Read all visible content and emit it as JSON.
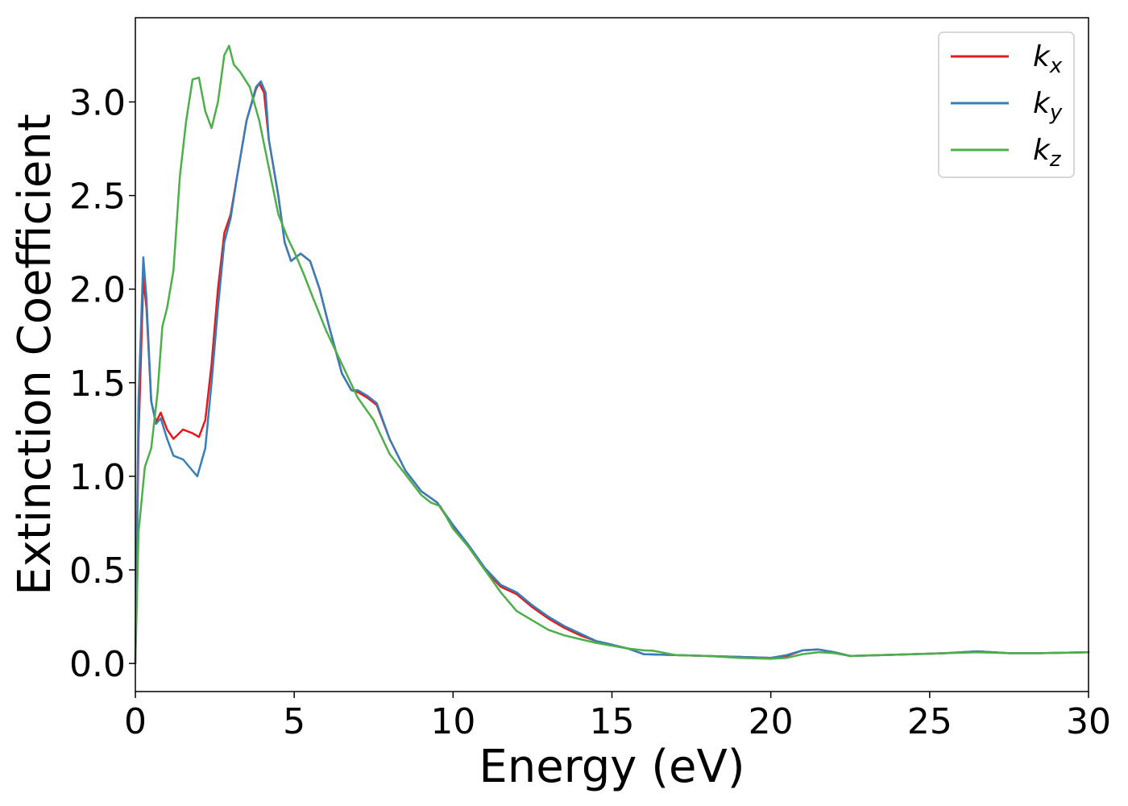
{
  "chart_data": {
    "type": "line",
    "xlabel": "Energy (eV)",
    "ylabel": "Extinction Coefficient",
    "xlim": [
      0,
      30
    ],
    "ylim": [
      -0.15,
      3.45
    ],
    "xticks": [
      0,
      5,
      10,
      15,
      20,
      25,
      30
    ],
    "xtick_labels": [
      "0",
      "5",
      "10",
      "15",
      "20",
      "25",
      "30"
    ],
    "yticks": [
      0.0,
      0.5,
      1.0,
      1.5,
      2.0,
      2.5,
      3.0
    ],
    "ytick_labels": [
      "0.0",
      "0.5",
      "1.0",
      "1.5",
      "2.0",
      "2.5",
      "3.0"
    ],
    "grid": false,
    "legend_position": "top-right",
    "series": [
      {
        "name": "k",
        "subscript": "x",
        "color": "#e41a1c",
        "points": [
          [
            0,
            0.0
          ],
          [
            0.1,
            1.2
          ],
          [
            0.25,
            2.06
          ],
          [
            0.35,
            1.9
          ],
          [
            0.5,
            1.4
          ],
          [
            0.65,
            1.29
          ],
          [
            0.8,
            1.34
          ],
          [
            1.0,
            1.25
          ],
          [
            1.2,
            1.2
          ],
          [
            1.5,
            1.25
          ],
          [
            1.8,
            1.23
          ],
          [
            2.0,
            1.21
          ],
          [
            2.2,
            1.3
          ],
          [
            2.4,
            1.6
          ],
          [
            2.6,
            2.0
          ],
          [
            2.8,
            2.3
          ],
          [
            3.0,
            2.4
          ],
          [
            3.2,
            2.6
          ],
          [
            3.5,
            2.9
          ],
          [
            3.8,
            3.07
          ],
          [
            3.9,
            3.1
          ],
          [
            4.05,
            3.05
          ],
          [
            4.2,
            2.8
          ],
          [
            4.5,
            2.5
          ],
          [
            4.7,
            2.25
          ],
          [
            4.9,
            2.15
          ],
          [
            5.2,
            2.19
          ],
          [
            5.5,
            2.15
          ],
          [
            5.8,
            2.0
          ],
          [
            6.1,
            1.8
          ],
          [
            6.5,
            1.55
          ],
          [
            6.8,
            1.46
          ],
          [
            7.0,
            1.45
          ],
          [
            7.3,
            1.42
          ],
          [
            7.6,
            1.38
          ],
          [
            8.0,
            1.2
          ],
          [
            8.5,
            1.03
          ],
          [
            9.0,
            0.92
          ],
          [
            9.5,
            0.86
          ],
          [
            10.0,
            0.73
          ],
          [
            10.5,
            0.62
          ],
          [
            11.0,
            0.5
          ],
          [
            11.5,
            0.41
          ],
          [
            12.0,
            0.37
          ],
          [
            12.5,
            0.3
          ],
          [
            13.0,
            0.24
          ],
          [
            13.5,
            0.19
          ],
          [
            14.0,
            0.15
          ],
          [
            14.5,
            0.12
          ],
          [
            15.0,
            0.1
          ],
          [
            15.5,
            0.08
          ],
          [
            16.0,
            0.05
          ],
          [
            17.0,
            0.045
          ],
          [
            18.0,
            0.04
          ],
          [
            19.0,
            0.035
          ],
          [
            20.0,
            0.03
          ],
          [
            20.5,
            0.04
          ],
          [
            21.0,
            0.07
          ],
          [
            21.5,
            0.075
          ],
          [
            22.0,
            0.06
          ],
          [
            22.5,
            0.04
          ],
          [
            23.5,
            0.045
          ],
          [
            24.5,
            0.05
          ],
          [
            25.5,
            0.055
          ],
          [
            26.5,
            0.065
          ],
          [
            27.5,
            0.055
          ],
          [
            28.5,
            0.055
          ],
          [
            30.0,
            0.06
          ]
        ]
      },
      {
        "name": "k",
        "subscript": "y",
        "color": "#377eb8",
        "points": [
          [
            0,
            0.0
          ],
          [
            0.1,
            1.4
          ],
          [
            0.25,
            2.17
          ],
          [
            0.35,
            1.95
          ],
          [
            0.5,
            1.4
          ],
          [
            0.65,
            1.28
          ],
          [
            0.8,
            1.31
          ],
          [
            1.0,
            1.2
          ],
          [
            1.2,
            1.11
          ],
          [
            1.5,
            1.09
          ],
          [
            1.8,
            1.03
          ],
          [
            1.95,
            1.0
          ],
          [
            2.2,
            1.15
          ],
          [
            2.4,
            1.5
          ],
          [
            2.6,
            1.9
          ],
          [
            2.8,
            2.25
          ],
          [
            3.0,
            2.38
          ],
          [
            3.2,
            2.6
          ],
          [
            3.5,
            2.9
          ],
          [
            3.8,
            3.08
          ],
          [
            3.95,
            3.11
          ],
          [
            4.1,
            3.05
          ],
          [
            4.2,
            2.8
          ],
          [
            4.5,
            2.5
          ],
          [
            4.7,
            2.25
          ],
          [
            4.9,
            2.15
          ],
          [
            5.2,
            2.19
          ],
          [
            5.5,
            2.15
          ],
          [
            5.8,
            2.0
          ],
          [
            6.1,
            1.8
          ],
          [
            6.5,
            1.55
          ],
          [
            6.8,
            1.46
          ],
          [
            7.0,
            1.46
          ],
          [
            7.3,
            1.43
          ],
          [
            7.6,
            1.39
          ],
          [
            8.0,
            1.2
          ],
          [
            8.5,
            1.03
          ],
          [
            9.0,
            0.92
          ],
          [
            9.5,
            0.86
          ],
          [
            10.0,
            0.74
          ],
          [
            10.5,
            0.63
          ],
          [
            11.0,
            0.51
          ],
          [
            11.5,
            0.42
          ],
          [
            12.0,
            0.38
          ],
          [
            12.5,
            0.31
          ],
          [
            13.0,
            0.25
          ],
          [
            13.5,
            0.2
          ],
          [
            14.0,
            0.16
          ],
          [
            14.5,
            0.12
          ],
          [
            15.0,
            0.1
          ],
          [
            15.5,
            0.08
          ],
          [
            16.0,
            0.05
          ],
          [
            17.0,
            0.045
          ],
          [
            18.0,
            0.04
          ],
          [
            19.0,
            0.035
          ],
          [
            20.0,
            0.03
          ],
          [
            20.5,
            0.045
          ],
          [
            21.0,
            0.07
          ],
          [
            21.5,
            0.075
          ],
          [
            22.0,
            0.06
          ],
          [
            22.5,
            0.04
          ],
          [
            23.5,
            0.045
          ],
          [
            24.5,
            0.05
          ],
          [
            25.5,
            0.055
          ],
          [
            26.5,
            0.065
          ],
          [
            27.5,
            0.055
          ],
          [
            28.5,
            0.055
          ],
          [
            30.0,
            0.06
          ]
        ]
      },
      {
        "name": "k",
        "subscript": "z",
        "color": "#4daf4a",
        "points": [
          [
            0,
            0.0
          ],
          [
            0.1,
            0.7
          ],
          [
            0.3,
            1.05
          ],
          [
            0.5,
            1.15
          ],
          [
            0.7,
            1.45
          ],
          [
            0.85,
            1.8
          ],
          [
            1.0,
            1.9
          ],
          [
            1.2,
            2.1
          ],
          [
            1.4,
            2.6
          ],
          [
            1.6,
            2.9
          ],
          [
            1.8,
            3.12
          ],
          [
            2.0,
            3.13
          ],
          [
            2.2,
            2.95
          ],
          [
            2.4,
            2.86
          ],
          [
            2.6,
            3.0
          ],
          [
            2.8,
            3.25
          ],
          [
            2.95,
            3.3
          ],
          [
            3.1,
            3.2
          ],
          [
            3.3,
            3.16
          ],
          [
            3.6,
            3.08
          ],
          [
            3.9,
            2.9
          ],
          [
            4.2,
            2.65
          ],
          [
            4.5,
            2.4
          ],
          [
            4.8,
            2.27
          ],
          [
            5.0,
            2.2
          ],
          [
            5.3,
            2.08
          ],
          [
            5.6,
            1.95
          ],
          [
            6.0,
            1.78
          ],
          [
            6.5,
            1.6
          ],
          [
            7.0,
            1.42
          ],
          [
            7.5,
            1.3
          ],
          [
            8.0,
            1.12
          ],
          [
            8.5,
            1.01
          ],
          [
            9.0,
            0.9
          ],
          [
            9.3,
            0.86
          ],
          [
            9.6,
            0.84
          ],
          [
            10.0,
            0.72
          ],
          [
            10.5,
            0.62
          ],
          [
            11.0,
            0.5
          ],
          [
            11.5,
            0.38
          ],
          [
            12.0,
            0.28
          ],
          [
            12.5,
            0.23
          ],
          [
            13.0,
            0.18
          ],
          [
            13.5,
            0.15
          ],
          [
            14.0,
            0.13
          ],
          [
            14.5,
            0.11
          ],
          [
            15.0,
            0.095
          ],
          [
            15.5,
            0.08
          ],
          [
            16.0,
            0.07
          ],
          [
            16.3,
            0.068
          ],
          [
            17.0,
            0.045
          ],
          [
            18.0,
            0.04
          ],
          [
            19.0,
            0.03
          ],
          [
            20.0,
            0.025
          ],
          [
            20.5,
            0.03
          ],
          [
            21.0,
            0.05
          ],
          [
            21.5,
            0.06
          ],
          [
            22.0,
            0.055
          ],
          [
            22.5,
            0.04
          ],
          [
            23.5,
            0.045
          ],
          [
            24.5,
            0.05
          ],
          [
            25.5,
            0.055
          ],
          [
            26.5,
            0.06
          ],
          [
            27.5,
            0.055
          ],
          [
            28.5,
            0.055
          ],
          [
            30.0,
            0.06
          ]
        ]
      }
    ]
  }
}
